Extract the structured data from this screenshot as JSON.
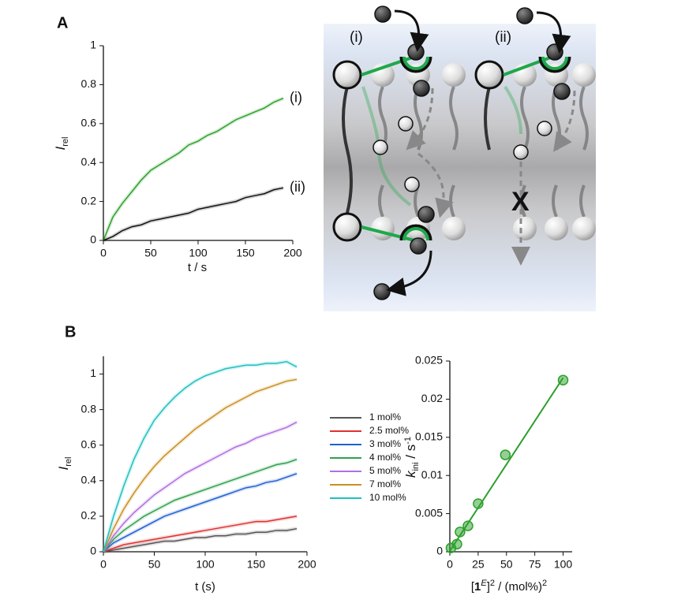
{
  "panel_labels": [
    "A",
    "B"
  ],
  "diagram": {
    "labels": [
      "(i)",
      "(ii)"
    ],
    "blocked": "X"
  },
  "chart_data": [
    {
      "type": "line",
      "xlabel": "t / s",
      "ylabel": [
        "I",
        "rel"
      ],
      "xlim": [
        0,
        200
      ],
      "ylim": [
        0,
        1
      ],
      "xticks": [
        0,
        50,
        100,
        150,
        200
      ],
      "yticks": [
        0,
        0.2,
        0.4,
        0.6,
        0.8,
        1
      ],
      "legend": "end",
      "x": [
        0,
        10,
        20,
        30,
        40,
        50,
        60,
        70,
        80,
        90,
        100,
        110,
        120,
        130,
        140,
        150,
        160,
        170,
        180,
        190
      ],
      "series": [
        {
          "name": "(i)",
          "color": "#2ca02c",
          "values": [
            0,
            0.12,
            0.19,
            0.25,
            0.31,
            0.36,
            0.39,
            0.42,
            0.45,
            0.49,
            0.51,
            0.54,
            0.56,
            0.59,
            0.62,
            0.64,
            0.66,
            0.68,
            0.71,
            0.73
          ]
        },
        {
          "name": "(ii)",
          "color": "#111111",
          "values": [
            0,
            0.02,
            0.05,
            0.07,
            0.08,
            0.1,
            0.11,
            0.12,
            0.13,
            0.14,
            0.16,
            0.17,
            0.18,
            0.19,
            0.2,
            0.22,
            0.23,
            0.24,
            0.26,
            0.27
          ]
        }
      ]
    },
    {
      "type": "line",
      "xlabel": "t (s)",
      "ylabel": [
        "I",
        "rel"
      ],
      "xlim": [
        0,
        200
      ],
      "ylim": [
        0,
        1.1
      ],
      "xticks": [
        0,
        50,
        100,
        150,
        200
      ],
      "yticks": [
        0,
        0.2,
        0.4,
        0.6,
        0.8,
        1
      ],
      "legend": "right",
      "x": [
        0,
        10,
        20,
        30,
        40,
        50,
        60,
        70,
        80,
        90,
        100,
        110,
        120,
        130,
        140,
        150,
        160,
        170,
        180,
        190
      ],
      "series": [
        {
          "name": "1 mol%",
          "color": "#555555",
          "values": [
            0,
            0.01,
            0.02,
            0.03,
            0.04,
            0.05,
            0.06,
            0.06,
            0.07,
            0.08,
            0.08,
            0.09,
            0.09,
            0.1,
            0.1,
            0.11,
            0.11,
            0.12,
            0.12,
            0.13
          ]
        },
        {
          "name": "2.5 mol%",
          "color": "#e03030",
          "values": [
            0,
            0.02,
            0.04,
            0.05,
            0.06,
            0.07,
            0.08,
            0.09,
            0.1,
            0.11,
            0.12,
            0.13,
            0.14,
            0.15,
            0.16,
            0.17,
            0.17,
            0.18,
            0.19,
            0.2
          ]
        },
        {
          "name": "3 mol%",
          "color": "#2060d0",
          "values": [
            0,
            0.05,
            0.08,
            0.11,
            0.14,
            0.17,
            0.2,
            0.22,
            0.24,
            0.26,
            0.28,
            0.3,
            0.32,
            0.34,
            0.36,
            0.37,
            0.39,
            0.4,
            0.42,
            0.44
          ]
        },
        {
          "name": "4 mol%",
          "color": "#30a050",
          "values": [
            0,
            0.07,
            0.12,
            0.16,
            0.2,
            0.23,
            0.26,
            0.29,
            0.31,
            0.33,
            0.35,
            0.37,
            0.39,
            0.41,
            0.43,
            0.45,
            0.47,
            0.49,
            0.5,
            0.52
          ]
        },
        {
          "name": "5 mol%",
          "color": "#b070e0",
          "values": [
            0,
            0.09,
            0.16,
            0.22,
            0.27,
            0.32,
            0.36,
            0.4,
            0.44,
            0.47,
            0.5,
            0.53,
            0.56,
            0.59,
            0.61,
            0.64,
            0.66,
            0.68,
            0.7,
            0.73
          ]
        },
        {
          "name": "7 mol%",
          "color": "#c89020",
          "values": [
            0,
            0.13,
            0.24,
            0.33,
            0.41,
            0.48,
            0.54,
            0.59,
            0.64,
            0.69,
            0.73,
            0.77,
            0.81,
            0.84,
            0.87,
            0.9,
            0.92,
            0.94,
            0.96,
            0.97
          ]
        },
        {
          "name": "10 mol%",
          "color": "#20c0c0",
          "values": [
            0,
            0.2,
            0.37,
            0.52,
            0.64,
            0.74,
            0.81,
            0.87,
            0.92,
            0.96,
            0.99,
            1.01,
            1.03,
            1.04,
            1.05,
            1.05,
            1.06,
            1.06,
            1.07,
            1.04
          ]
        }
      ]
    },
    {
      "type": "scatter",
      "xlabel": [
        "[",
        "1",
        "E",
        "]",
        "2",
        " / (mol%)",
        "2"
      ],
      "ylabel": [
        "k",
        "ini",
        " / s",
        "-1"
      ],
      "xlim": [
        0,
        108
      ],
      "ylim": [
        0,
        0.025
      ],
      "xticks": [
        0,
        25,
        50,
        75,
        100
      ],
      "yticks": [
        0,
        0.005,
        0.01,
        0.015,
        0.02,
        0.025
      ],
      "color": "#2ca02c",
      "x": [
        1,
        6.25,
        9,
        16,
        25,
        49,
        100
      ],
      "values": [
        0.0005,
        0.001,
        0.0026,
        0.0034,
        0.0063,
        0.0127,
        0.0225
      ],
      "fit": {
        "x": [
          0,
          100
        ],
        "values": [
          0.0001,
          0.0228
        ]
      }
    }
  ]
}
